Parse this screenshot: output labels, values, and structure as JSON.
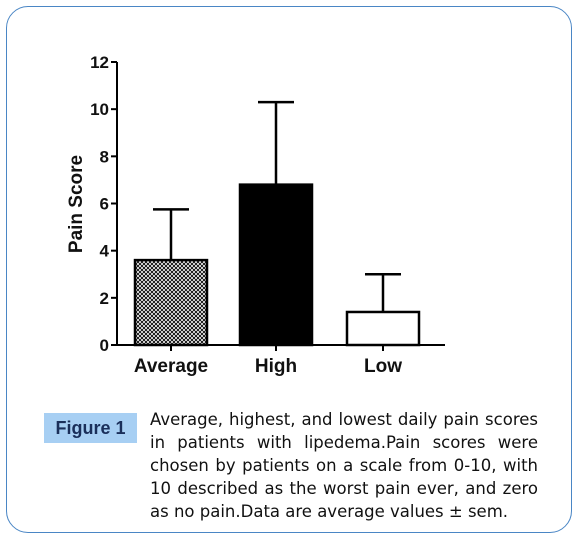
{
  "figure": {
    "label": "Figure 1",
    "caption": "Average, highest, and lowest daily pain scores in patients with lipedema.Pain scores were chosen by patients on a scale from 0-10, with 10 described as the worst pain ever, and zero as no pain.Data are average values ± sem."
  },
  "colors": {
    "frame": "#4a86c5",
    "badge": "#a7cff3",
    "bar_high": "#000000",
    "bar_low": "#ffffff",
    "bar_average_pattern": "#000000"
  },
  "chart_data": {
    "type": "bar",
    "title": "",
    "xlabel": "",
    "ylabel": "Pain Score",
    "ylim": [
      0,
      12
    ],
    "yticks": [
      0,
      2,
      4,
      6,
      8,
      10,
      12
    ],
    "categories": [
      "Average",
      "High",
      "Low"
    ],
    "values": [
      3.6,
      6.8,
      1.4
    ],
    "error_upper": [
      5.75,
      10.3,
      3.0
    ],
    "bar_fills": [
      "crosshatch",
      "black",
      "white"
    ],
    "grid": false,
    "legend": "none"
  }
}
